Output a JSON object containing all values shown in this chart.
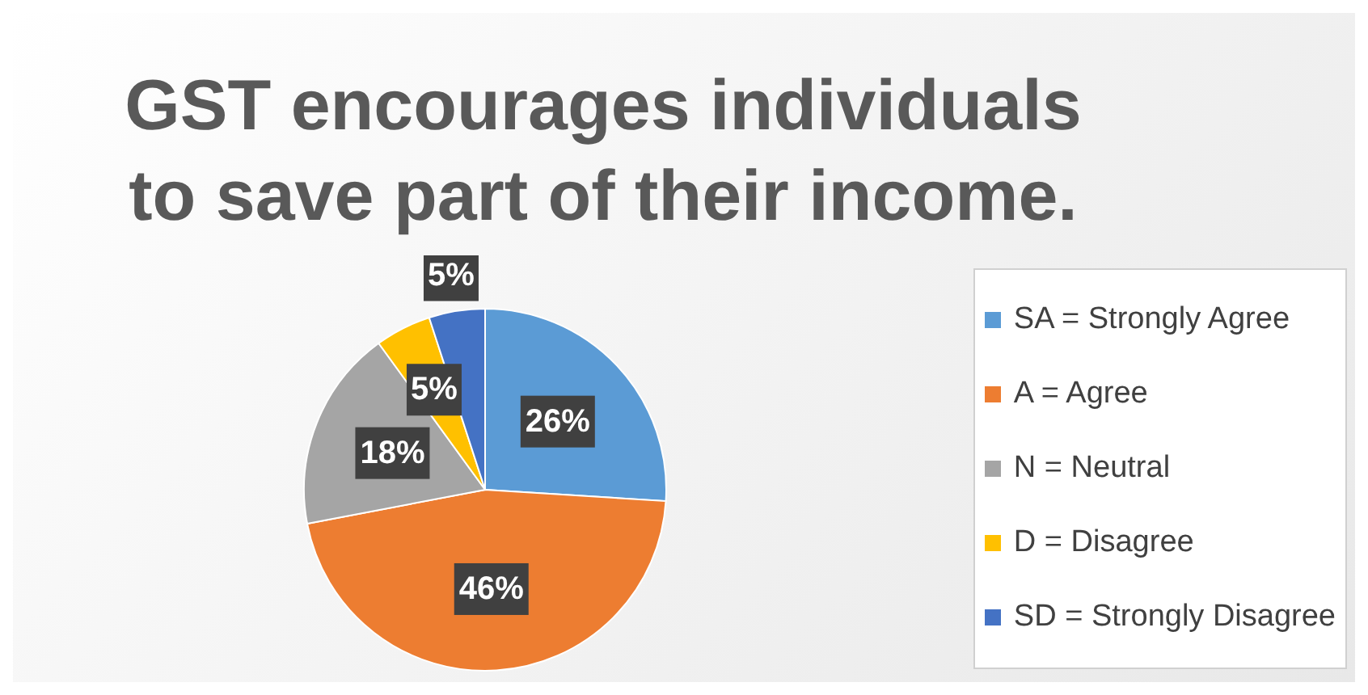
{
  "chart_data": {
    "type": "pie",
    "title": "GST encourages individuals to save part of their income.",
    "categories": [
      "SA = Strongly Agree",
      "A = Agree",
      "N = Neutral",
      "D = Disagree",
      "SD = Strongly Disagree"
    ],
    "values": [
      26,
      46,
      18,
      5,
      5
    ],
    "colors": [
      "#5b9bd5",
      "#ed7d31",
      "#a5a5a5",
      "#ffc000",
      "#4472c4"
    ],
    "value_labels": [
      "26%",
      "46%",
      "18%",
      "5%",
      "5%"
    ],
    "legend": "right"
  }
}
